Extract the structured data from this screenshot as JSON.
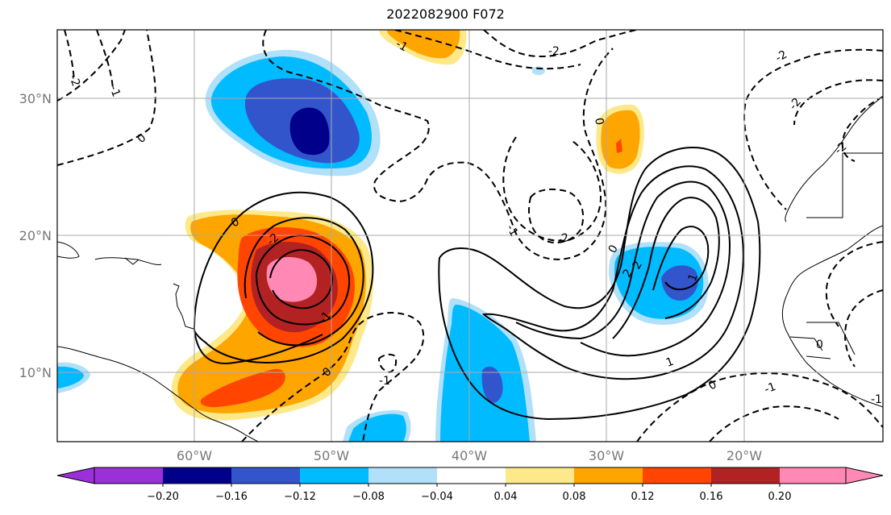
{
  "title": "2022082900 F072",
  "map": {
    "lat_labels": [
      "30°N",
      "20°N",
      "10°N"
    ],
    "lon_labels": [
      "60°W",
      "50°W",
      "40°W",
      "30°W",
      "20°W"
    ],
    "contour_labels": [
      "-2",
      "-1",
      "-2",
      "-1",
      "-2",
      "0",
      "-2",
      "0",
      "-1",
      "-2",
      "0",
      "-1",
      "-2",
      "0",
      "0",
      "-1",
      "0",
      "1",
      "2",
      "2",
      "1",
      "0",
      "-1",
      "-2",
      "-1",
      "0",
      "-1",
      "2",
      "2",
      "2",
      "2",
      "2"
    ],
    "shading_colors": {
      "deep_purple": "#9b30d9",
      "navy": "#00008b",
      "blue": "#3355cc",
      "sky": "#00bbff",
      "light_sky": "#b0e0fa",
      "white": "#ffffff",
      "pale_yellow": "#fde98a",
      "orange": "#ffa500",
      "red_orange": "#ff4500",
      "dark_red": "#b22222",
      "pink": "#ff88b4"
    }
  },
  "colorbar": {
    "tick_labels": [
      "−0.20",
      "−0.16",
      "−0.12",
      "−0.08",
      "−0.04",
      "0.04",
      "0.08",
      "0.12",
      "0.16",
      "0.20"
    ]
  }
}
